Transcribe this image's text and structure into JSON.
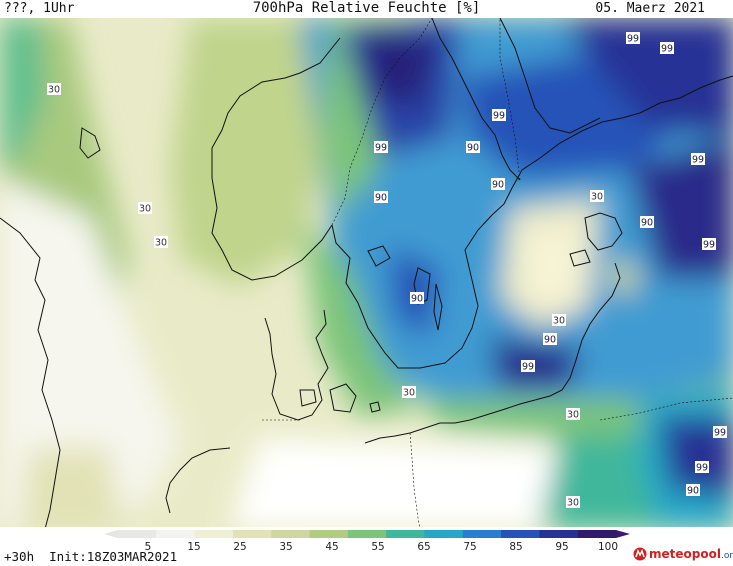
{
  "header": {
    "left_text": "???, 1Uhr",
    "title": "700hPa Relative Feuchte [%]",
    "date": "05. Maerz 2021"
  },
  "footer": {
    "run_info": "+30h  Init:18Z03MAR2021",
    "brand_main": "meteopool",
    "brand_suffix": ".org"
  },
  "colorbar": {
    "ticks": [
      "5",
      "15",
      "25",
      "35",
      "45",
      "55",
      "65",
      "75",
      "85",
      "95",
      "100"
    ],
    "colors": [
      "#e8e8e8",
      "#f3f3f0",
      "#efefd6",
      "#e2e2b6",
      "#cfd79e",
      "#b0cc7e",
      "#7cc47a",
      "#3fb79b",
      "#27a7c8",
      "#2a7ed1",
      "#2753b8",
      "#263395",
      "#301a6a"
    ]
  },
  "contour_labels": [
    {
      "text": "30",
      "cls": "a"
    },
    {
      "text": "30",
      "cls": "a"
    },
    {
      "text": "30",
      "cls": "a"
    },
    {
      "text": "99",
      "cls": "b"
    },
    {
      "text": "99",
      "cls": "b"
    },
    {
      "text": "99",
      "cls": "b"
    },
    {
      "text": "99",
      "cls": "b"
    },
    {
      "text": "90",
      "cls": "b"
    },
    {
      "text": "90",
      "cls": "b"
    },
    {
      "text": "90",
      "cls": "b"
    },
    {
      "text": "30",
      "cls": "a"
    },
    {
      "text": "90",
      "cls": "b"
    },
    {
      "text": "99",
      "cls": "b"
    },
    {
      "text": "99",
      "cls": "b"
    },
    {
      "text": "90",
      "cls": "b"
    },
    {
      "text": "30",
      "cls": "a"
    },
    {
      "text": "90",
      "cls": "b"
    },
    {
      "text": "99",
      "cls": "b"
    },
    {
      "text": "30",
      "cls": "a"
    },
    {
      "text": "30",
      "cls": "a"
    },
    {
      "text": "99",
      "cls": "b"
    },
    {
      "text": "99",
      "cls": "b"
    },
    {
      "text": "90",
      "cls": "b"
    },
    {
      "text": "30",
      "cls": "a"
    }
  ]
}
